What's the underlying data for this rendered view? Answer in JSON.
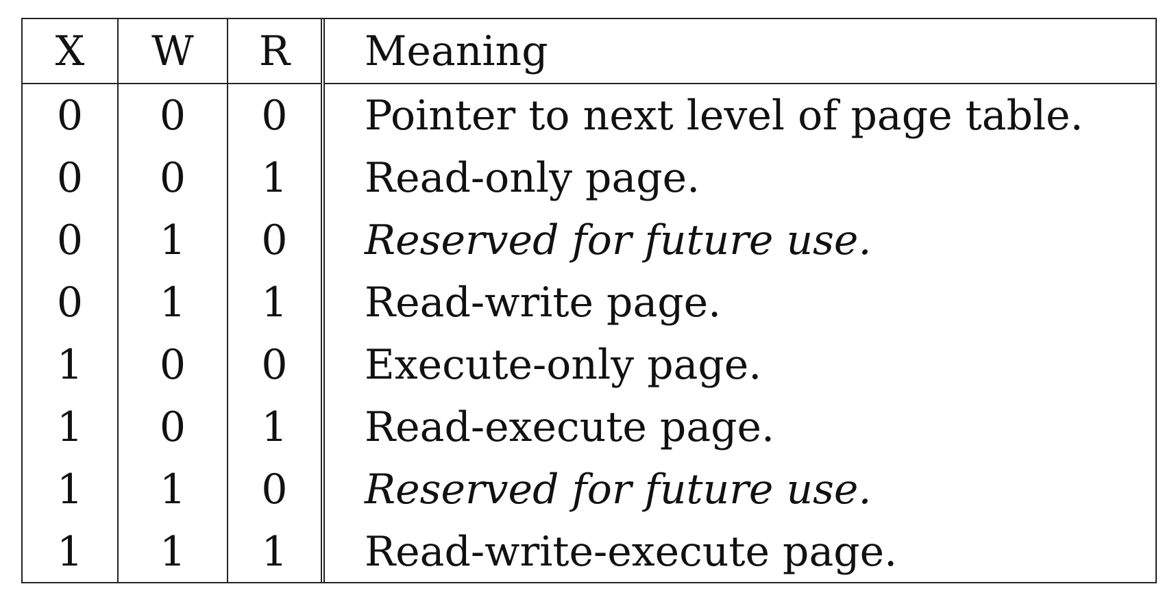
{
  "table": {
    "headers": {
      "x": "X",
      "w": "W",
      "r": "R",
      "meaning": "Meaning"
    },
    "rows": [
      {
        "x": "0",
        "w": "0",
        "r": "0",
        "meaning": "Pointer to next level of page table.",
        "italic": false
      },
      {
        "x": "0",
        "w": "0",
        "r": "1",
        "meaning": "Read-only page.",
        "italic": false
      },
      {
        "x": "0",
        "w": "1",
        "r": "0",
        "meaning": "Reserved for future use.",
        "italic": true
      },
      {
        "x": "0",
        "w": "1",
        "r": "1",
        "meaning": "Read-write page.",
        "italic": false
      },
      {
        "x": "1",
        "w": "0",
        "r": "0",
        "meaning": "Execute-only page.",
        "italic": false
      },
      {
        "x": "1",
        "w": "0",
        "r": "1",
        "meaning": "Read-execute page.",
        "italic": false
      },
      {
        "x": "1",
        "w": "1",
        "r": "0",
        "meaning": "Reserved for future use.",
        "italic": true
      },
      {
        "x": "1",
        "w": "1",
        "r": "1",
        "meaning": "Read-write-execute page.",
        "italic": false
      }
    ]
  }
}
